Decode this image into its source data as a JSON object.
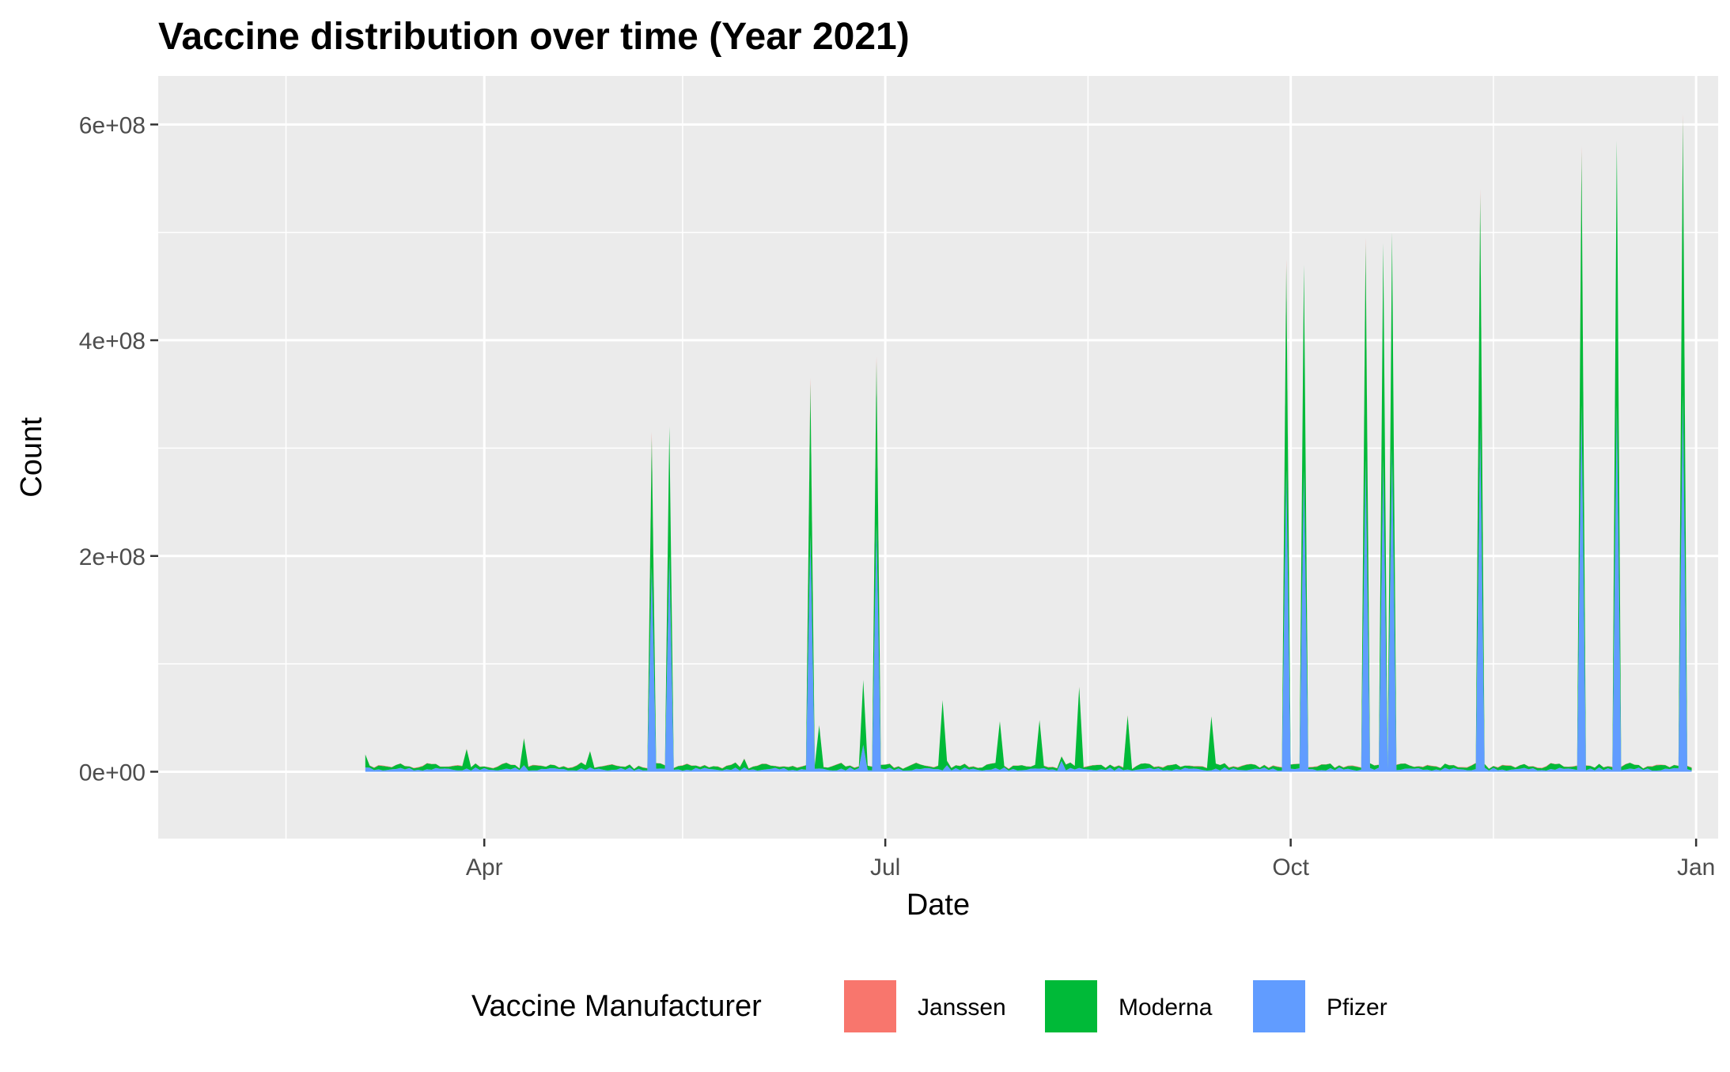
{
  "chart_data": {
    "type": "area",
    "stacked": true,
    "title": "Vaccine distribution over time (Year 2021)",
    "xlabel": "Date",
    "ylabel": "Count",
    "x_range": [
      "2021-01-17",
      "2022-01-06"
    ],
    "y_range": [
      -62000000,
      645000000
    ],
    "x_ticks": [
      {
        "date": "2021-04-01",
        "label": "Apr"
      },
      {
        "date": "2021-07-01",
        "label": "Jul"
      },
      {
        "date": "2021-10-01",
        "label": "Oct"
      },
      {
        "date": "2022-01-01",
        "label": "Jan"
      }
    ],
    "x_minor_ticks": [
      "2021-02-15",
      "2021-05-16",
      "2021-08-16",
      "2021-11-16"
    ],
    "y_ticks": [
      {
        "value": 0,
        "label": "0e+00"
      },
      {
        "value": 200000000,
        "label": "2e+08"
      },
      {
        "value": 400000000,
        "label": "4e+08"
      },
      {
        "value": 600000000,
        "label": "6e+08"
      }
    ],
    "y_minor_ticks": [
      100000000,
      300000000,
      500000000
    ],
    "grid": true,
    "legend": {
      "title": "Vaccine Manufacturer",
      "position": "bottom",
      "entries": [
        {
          "name": "Janssen",
          "color": "#F8766D"
        },
        {
          "name": "Moderna",
          "color": "#00BA38"
        },
        {
          "name": "Pfizer",
          "color": "#619CFF"
        }
      ]
    },
    "colors": {
      "panel": "#EBEBEB",
      "grid": "#FFFFFF",
      "Janssen": "#F8766D",
      "Moderna": "#00BA38",
      "Pfizer": "#619CFF"
    },
    "series": [
      {
        "name": "Pfizer",
        "points": [
          [
            "2021-03-05",
            4000000
          ],
          [
            "2021-03-28",
            3000000
          ],
          [
            "2021-04-10",
            6000000
          ],
          [
            "2021-04-25",
            4000000
          ],
          [
            "2021-05-09",
            190000000
          ],
          [
            "2021-05-13",
            200000000
          ],
          [
            "2021-05-30",
            4000000
          ],
          [
            "2021-06-14",
            220000000
          ],
          [
            "2021-06-26",
            25000000
          ],
          [
            "2021-06-29",
            230000000
          ],
          [
            "2021-07-15",
            6000000
          ],
          [
            "2021-08-10",
            10000000
          ],
          [
            "2021-09-30",
            280000000
          ],
          [
            "2021-10-04",
            280000000
          ],
          [
            "2021-10-18",
            290000000
          ],
          [
            "2021-10-22",
            290000000
          ],
          [
            "2021-10-24",
            300000000
          ],
          [
            "2021-11-13",
            320000000
          ],
          [
            "2021-12-06",
            340000000
          ],
          [
            "2021-12-14",
            340000000
          ],
          [
            "2021-12-29",
            350000000
          ]
        ]
      },
      {
        "name": "Moderna",
        "points": [
          [
            "2021-03-05",
            12000000
          ],
          [
            "2021-03-28",
            18000000
          ],
          [
            "2021-04-10",
            25000000
          ],
          [
            "2021-04-25",
            15000000
          ],
          [
            "2021-05-09",
            120000000
          ],
          [
            "2021-05-13",
            120000000
          ],
          [
            "2021-05-30",
            8000000
          ],
          [
            "2021-06-14",
            140000000
          ],
          [
            "2021-06-16",
            40000000
          ],
          [
            "2021-06-26",
            60000000
          ],
          [
            "2021-06-29",
            150000000
          ],
          [
            "2021-07-14",
            65000000
          ],
          [
            "2021-07-27",
            45000000
          ],
          [
            "2021-08-05",
            45000000
          ],
          [
            "2021-08-14",
            75000000
          ],
          [
            "2021-08-25",
            50000000
          ],
          [
            "2021-09-13",
            50000000
          ],
          [
            "2021-09-30",
            190000000
          ],
          [
            "2021-10-04",
            190000000
          ],
          [
            "2021-10-18",
            200000000
          ],
          [
            "2021-10-22",
            200000000
          ],
          [
            "2021-10-24",
            200000000
          ],
          [
            "2021-11-13",
            215000000
          ],
          [
            "2021-12-06",
            235000000
          ],
          [
            "2021-12-14",
            245000000
          ],
          [
            "2021-12-29",
            255000000
          ]
        ]
      },
      {
        "name": "Janssen",
        "points": [
          [
            "2021-05-09",
            5000000
          ],
          [
            "2021-06-14",
            5000000
          ],
          [
            "2021-06-29",
            5000000
          ],
          [
            "2021-09-30",
            5000000
          ],
          [
            "2021-10-18",
            5000000
          ],
          [
            "2021-11-13",
            5000000
          ],
          [
            "2021-12-06",
            5000000
          ],
          [
            "2021-12-29",
            5000000
          ]
        ]
      }
    ]
  }
}
